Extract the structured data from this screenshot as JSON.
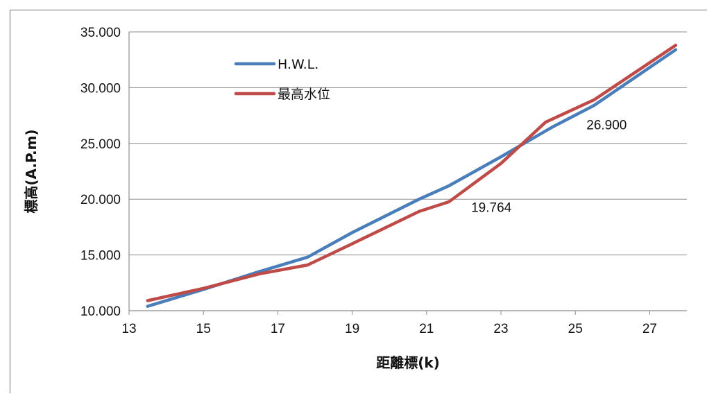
{
  "chart_data": {
    "type": "line",
    "title": "",
    "xlabel": "距離標(k)",
    "ylabel": "標高(A.P.m)",
    "xlim": [
      13,
      28
    ],
    "ylim": [
      10,
      35
    ],
    "x_ticks": [
      "13",
      "15",
      "17",
      "19",
      "21",
      "23",
      "25",
      "27"
    ],
    "x_tick_values": [
      13,
      15,
      17,
      19,
      21,
      23,
      25,
      27
    ],
    "y_ticks": [
      "10.000",
      "15.000",
      "20.000",
      "25.000",
      "30.000",
      "35.000"
    ],
    "y_tick_values": [
      10,
      15,
      20,
      25,
      30,
      35
    ],
    "grid": "horizontal",
    "legend_position": "top-left",
    "series": [
      {
        "name": "H.W.L.",
        "color": "#4a7ebb",
        "points": [
          [
            13.5,
            10.4
          ],
          [
            15.0,
            11.9
          ],
          [
            16.5,
            13.5
          ],
          [
            17.8,
            14.8
          ],
          [
            19.0,
            17.0
          ],
          [
            20.8,
            20.0
          ],
          [
            21.6,
            21.2
          ],
          [
            23.0,
            23.8
          ],
          [
            24.4,
            26.5
          ],
          [
            25.5,
            28.4
          ],
          [
            27.7,
            33.4
          ]
        ]
      },
      {
        "name": "最高水位",
        "color": "#be4b48",
        "points": [
          [
            13.5,
            10.9
          ],
          [
            15.0,
            12.0
          ],
          [
            16.5,
            13.3
          ],
          [
            17.8,
            14.1
          ],
          [
            19.0,
            16.0
          ],
          [
            20.8,
            18.9
          ],
          [
            21.6,
            19.764
          ],
          [
            23.0,
            23.2
          ],
          [
            24.2,
            26.9
          ],
          [
            25.5,
            28.9
          ],
          [
            27.7,
            33.8
          ]
        ]
      }
    ],
    "annotations": [
      {
        "text": "19.764",
        "x": 22.2,
        "y": 19.3
      },
      {
        "text": "26.900",
        "x": 25.3,
        "y": 26.7
      }
    ]
  }
}
